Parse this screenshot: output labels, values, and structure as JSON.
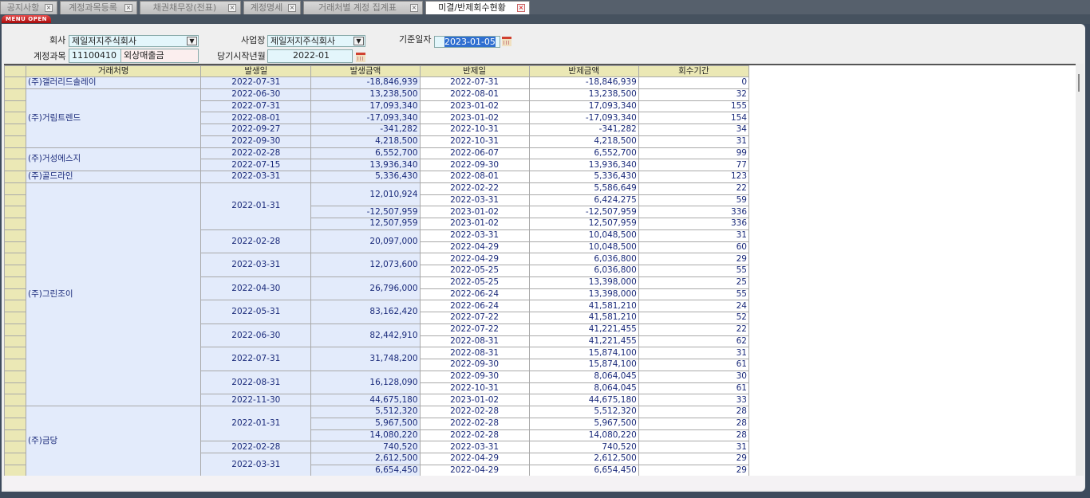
{
  "tabs": [
    {
      "label": "공지사항"
    },
    {
      "label": "계정과목등록"
    },
    {
      "label": "채권채무장(전표)"
    },
    {
      "label": "계정명세"
    },
    {
      "label": "거래처별 계정 집계표"
    },
    {
      "label": "미결/반제회수현황",
      "active": true
    }
  ],
  "menu_open": "MENU OPEN",
  "form": {
    "company_label": "회사",
    "company_value": "제일저지주식회사",
    "site_label": "사업장",
    "site_value": "제일저지주식회사",
    "base_date_label": "기준일자",
    "base_date_value": "2023-01-05",
    "account_label": "계정과목",
    "account_code": "11100410",
    "account_name": "외상매출금",
    "start_month_label": "당기시작년월",
    "start_month_value": "2022-01"
  },
  "columns": [
    "거래처명",
    "발생일",
    "발생금액",
    "반제일",
    "반제금액",
    "회수기간"
  ],
  "customers": [
    {
      "name": "(주)갤러리드솔레이",
      "issues": [
        {
          "date": "2022-07-31",
          "amounts": [
            {
              "amount": "-18,846,939",
              "settles": [
                [
                  "2022-07-31",
                  "-18,846,939",
                  "0"
                ]
              ]
            }
          ]
        }
      ]
    },
    {
      "name": "(주)거림트렌드",
      "issues": [
        {
          "date": "2022-06-30",
          "amounts": [
            {
              "amount": "13,238,500",
              "settles": [
                [
                  "2022-08-01",
                  "13,238,500",
                  "32"
                ]
              ]
            }
          ]
        },
        {
          "date": "2022-07-31",
          "amounts": [
            {
              "amount": "17,093,340",
              "settles": [
                [
                  "2023-01-02",
                  "17,093,340",
                  "155"
                ]
              ]
            }
          ]
        },
        {
          "date": "2022-08-01",
          "amounts": [
            {
              "amount": "-17,093,340",
              "settles": [
                [
                  "2023-01-02",
                  "-17,093,340",
                  "154"
                ]
              ]
            }
          ]
        },
        {
          "date": "2022-09-27",
          "amounts": [
            {
              "amount": "-341,282",
              "settles": [
                [
                  "2022-10-31",
                  "-341,282",
                  "34"
                ]
              ]
            }
          ]
        },
        {
          "date": "2022-09-30",
          "amounts": [
            {
              "amount": "4,218,500",
              "settles": [
                [
                  "2022-10-31",
                  "4,218,500",
                  "31"
                ]
              ]
            }
          ]
        }
      ]
    },
    {
      "name": "(주)거성에스지",
      "issues": [
        {
          "date": "2022-02-28",
          "amounts": [
            {
              "amount": "6,552,700",
              "settles": [
                [
                  "2022-06-07",
                  "6,552,700",
                  "99"
                ]
              ]
            }
          ]
        },
        {
          "date": "2022-07-15",
          "amounts": [
            {
              "amount": "13,936,340",
              "settles": [
                [
                  "2022-09-30",
                  "13,936,340",
                  "77"
                ]
              ]
            }
          ]
        }
      ]
    },
    {
      "name": "(주)골드라인",
      "issues": [
        {
          "date": "2022-03-31",
          "amounts": [
            {
              "amount": "5,336,430",
              "settles": [
                [
                  "2022-08-01",
                  "5,336,430",
                  "123"
                ]
              ]
            }
          ]
        }
      ]
    },
    {
      "name": "(주)그린조이",
      "issues": [
        {
          "date": "2022-01-31",
          "amounts": [
            {
              "amount": "12,010,924",
              "settles": [
                [
                  "2022-02-22",
                  "5,586,649",
                  "22"
                ],
                [
                  "2022-03-31",
                  "6,424,275",
                  "59"
                ]
              ]
            },
            {
              "amount": "-12,507,959",
              "settles": [
                [
                  "2023-01-02",
                  "-12,507,959",
                  "336"
                ]
              ]
            },
            {
              "amount": "12,507,959",
              "settles": [
                [
                  "2023-01-02",
                  "12,507,959",
                  "336"
                ]
              ]
            }
          ]
        },
        {
          "date": "2022-02-28",
          "amounts": [
            {
              "amount": "20,097,000",
              "settles": [
                [
                  "2022-03-31",
                  "10,048,500",
                  "31"
                ],
                [
                  "2022-04-29",
                  "10,048,500",
                  "60"
                ]
              ]
            }
          ]
        },
        {
          "date": "2022-03-31",
          "amounts": [
            {
              "amount": "12,073,600",
              "settles": [
                [
                  "2022-04-29",
                  "6,036,800",
                  "29"
                ],
                [
                  "2022-05-25",
                  "6,036,800",
                  "55"
                ]
              ]
            }
          ]
        },
        {
          "date": "2022-04-30",
          "amounts": [
            {
              "amount": "26,796,000",
              "settles": [
                [
                  "2022-05-25",
                  "13,398,000",
                  "25"
                ],
                [
                  "2022-06-24",
                  "13,398,000",
                  "55"
                ]
              ]
            }
          ]
        },
        {
          "date": "2022-05-31",
          "amounts": [
            {
              "amount": "83,162,420",
              "settles": [
                [
                  "2022-06-24",
                  "41,581,210",
                  "24"
                ],
                [
                  "2022-07-22",
                  "41,581,210",
                  "52"
                ]
              ]
            }
          ]
        },
        {
          "date": "2022-06-30",
          "amounts": [
            {
              "amount": "82,442,910",
              "settles": [
                [
                  "2022-07-22",
                  "41,221,455",
                  "22"
                ],
                [
                  "2022-08-31",
                  "41,221,455",
                  "62"
                ]
              ]
            }
          ]
        },
        {
          "date": "2022-07-31",
          "amounts": [
            {
              "amount": "31,748,200",
              "settles": [
                [
                  "2022-08-31",
                  "15,874,100",
                  "31"
                ],
                [
                  "2022-09-30",
                  "15,874,100",
                  "61"
                ]
              ]
            }
          ]
        },
        {
          "date": "2022-08-31",
          "amounts": [
            {
              "amount": "16,128,090",
              "settles": [
                [
                  "2022-09-30",
                  "8,064,045",
                  "30"
                ],
                [
                  "2022-10-31",
                  "8,064,045",
                  "61"
                ]
              ]
            }
          ]
        },
        {
          "date": "2022-11-30",
          "amounts": [
            {
              "amount": "44,675,180",
              "settles": [
                [
                  "2023-01-02",
                  "44,675,180",
                  "33"
                ]
              ]
            }
          ]
        }
      ]
    },
    {
      "name": "(주)금당",
      "issues": [
        {
          "date": "2022-01-31",
          "amounts": [
            {
              "amount": "5,512,320",
              "settles": [
                [
                  "2022-02-28",
                  "5,512,320",
                  "28"
                ]
              ]
            },
            {
              "amount": "5,967,500",
              "settles": [
                [
                  "2022-02-28",
                  "5,967,500",
                  "28"
                ]
              ]
            },
            {
              "amount": "14,080,220",
              "settles": [
                [
                  "2022-02-28",
                  "14,080,220",
                  "28"
                ]
              ]
            }
          ]
        },
        {
          "date": "2022-02-28",
          "amounts": [
            {
              "amount": "740,520",
              "settles": [
                [
                  "2022-03-31",
                  "740,520",
                  "31"
                ]
              ]
            }
          ]
        },
        {
          "date": "2022-03-31",
          "amounts": [
            {
              "amount": "2,612,500",
              "settles": [
                [
                  "2022-04-29",
                  "2,612,500",
                  "29"
                ]
              ]
            },
            {
              "amount": "6,654,450",
              "settles": [
                [
                  "2022-04-29",
                  "6,654,450",
                  "29"
                ]
              ]
            }
          ]
        }
      ]
    }
  ]
}
